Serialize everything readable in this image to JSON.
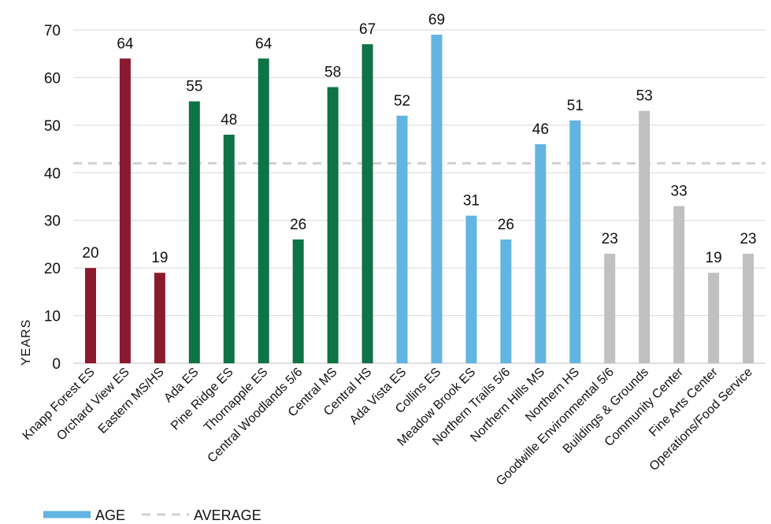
{
  "chart_data": {
    "type": "bar",
    "ylabel": "YEARS",
    "ylim": [
      0,
      70
    ],
    "yticks": [
      0,
      10,
      20,
      30,
      40,
      50,
      60,
      70
    ],
    "grid": true,
    "average": 42,
    "categories": [
      "Knapp Forest ES",
      "Orchard View ES",
      "Eastern MS/HS",
      "Ada ES",
      "Pine Ridge ES",
      "Thornapple ES",
      "Central Woodlands 5/6",
      "Central MS",
      "Central HS",
      "Ada Vista ES",
      "Collins ES",
      "Meadow Brook ES",
      "Northern Trails 5/6",
      "Northern Hills MS",
      "Northern HS",
      "Goodwille Environmental 5/6",
      "Buildings & Grounds",
      "Community  Center",
      "Fine Arts Center",
      "Operations/Food Service"
    ],
    "values": [
      20,
      64,
      19,
      55,
      48,
      64,
      26,
      58,
      67,
      52,
      69,
      31,
      26,
      46,
      51,
      23,
      53,
      33,
      19,
      23
    ],
    "data_labels": [
      "20",
      "64",
      "19",
      "55",
      "48",
      "64",
      "26",
      "58",
      "67",
      "52",
      "69",
      "31",
      "26",
      "46",
      "51",
      "23",
      "53",
      "33",
      "19",
      "23"
    ],
    "bar_colors": [
      "#8b1a30",
      "#8b1a30",
      "#8b1a30",
      "#0e7346",
      "#0e7346",
      "#0e7346",
      "#0e7346",
      "#0e7346",
      "#0e7346",
      "#62b5e2",
      "#62b5e2",
      "#62b5e2",
      "#62b5e2",
      "#62b5e2",
      "#62b5e2",
      "#c0c0c0",
      "#c0c0c0",
      "#c0c0c0",
      "#c0c0c0",
      "#c0c0c0"
    ],
    "legend": [
      {
        "name": "AGE",
        "color": "#62b5e2",
        "style": "solid"
      },
      {
        "name": "AVERAGE",
        "color": "#d0d0d0",
        "style": "dashed"
      }
    ],
    "legend_position": "bottom-left"
  }
}
